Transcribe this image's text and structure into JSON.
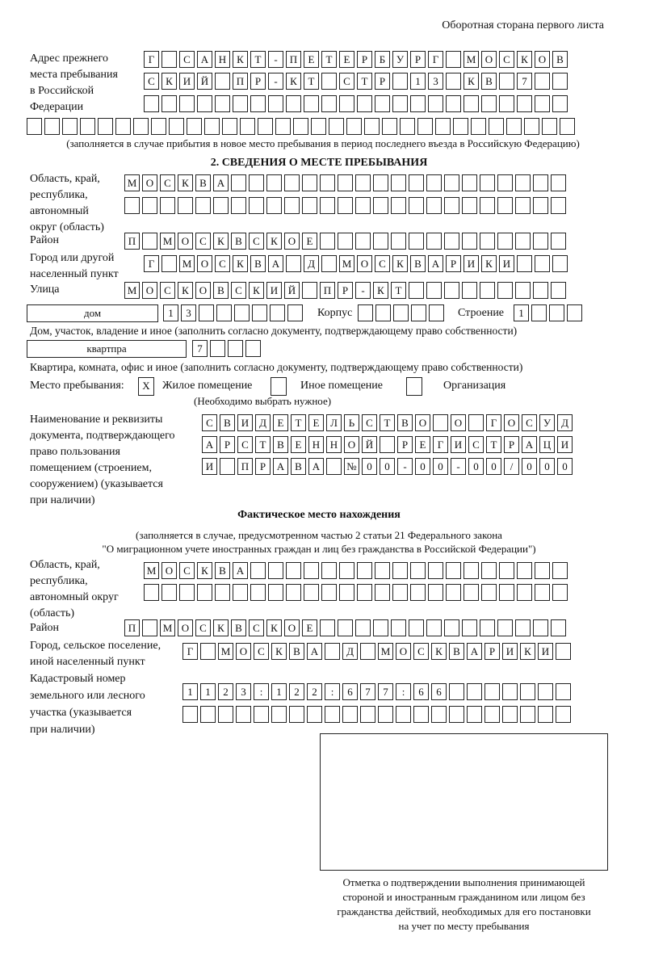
{
  "header": "Оборотная стора­на первого листа",
  "prev_address": {
    "label": [
      "Адрес прежнего",
      "места пребывания",
      "в Российской",
      "Федерации"
    ],
    "rows": [
      [
        "Г",
        "",
        "С",
        "А",
        "Н",
        "К",
        "Т",
        "-",
        "П",
        "Е",
        "Т",
        "Е",
        "Р",
        "Б",
        "У",
        "Р",
        "Г",
        "",
        "М",
        "О",
        "С",
        "К",
        "О",
        "В"
      ],
      [
        "С",
        "К",
        "И",
        "Й",
        "",
        "П",
        "Р",
        "-",
        "К",
        "Т",
        "",
        "С",
        "Т",
        "Р",
        "",
        "1",
        "3",
        "",
        "К",
        "В",
        "",
        "7",
        "",
        ""
      ],
      [
        "",
        "",
        "",
        "",
        "",
        "",
        "",
        "",
        "",
        "",
        "",
        "",
        "",
        "",
        "",
        "",
        "",
        "",
        "",
        "",
        "",
        "",
        "",
        ""
      ],
      [
        "",
        "",
        "",
        "",
        "",
        "",
        "",
        "",
        "",
        "",
        "",
        "",
        "",
        "",
        "",
        "",
        "",
        "",
        "",
        "",
        "",
        "",
        "",
        "",
        "",
        "",
        "",
        "",
        "",
        "",
        ""
      ]
    ],
    "note": "(заполняется в случае прибытия в новое место пребывания в период последнего въезда в Российскую Федерацию)"
  },
  "section2": {
    "title": "2. СВЕДЕНИЯ О МЕСТЕ ПРЕБЫВАНИЯ",
    "region_label": [
      "Область, край,",
      "республика,",
      "автономный",
      "округ (область)"
    ],
    "region_rows": [
      [
        "М",
        "О",
        "С",
        "К",
        "В",
        "А",
        "",
        "",
        "",
        "",
        "",
        "",
        "",
        "",
        "",
        "",
        "",
        "",
        "",
        "",
        "",
        "",
        "",
        "",
        ""
      ],
      [
        "",
        "",
        "",
        "",
        "",
        "",
        "",
        "",
        "",
        "",
        "",
        "",
        "",
        "",
        "",
        "",
        "",
        "",
        "",
        "",
        "",
        "",
        "",
        "",
        ""
      ]
    ],
    "district_label": "Район",
    "district": [
      "П",
      "",
      "М",
      "О",
      "С",
      "К",
      "В",
      "С",
      "К",
      "О",
      "Е",
      "",
      "",
      "",
      "",
      "",
      "",
      "",
      "",
      "",
      "",
      "",
      "",
      "",
      ""
    ],
    "city_label": [
      "Город или другой",
      "населенный пункт"
    ],
    "city": [
      "Г",
      "",
      "М",
      "О",
      "С",
      "К",
      "В",
      "А",
      "",
      "Д",
      "",
      "М",
      "О",
      "С",
      "К",
      "В",
      "А",
      "Р",
      "И",
      "К",
      "И",
      "",
      "",
      ""
    ],
    "street_label": "Улица",
    "street": [
      "М",
      "О",
      "С",
      "К",
      "О",
      "В",
      "С",
      "К",
      "И",
      "Й",
      "",
      "П",
      "Р",
      "-",
      "К",
      "Т",
      "",
      "",
      "",
      "",
      "",
      "",
      "",
      "",
      ""
    ],
    "house_type": "дом",
    "house": [
      "1",
      "3",
      "",
      "",
      "",
      "",
      "",
      ""
    ],
    "korpus_label": "Корпус",
    "korpus": [
      "",
      "",
      "",
      "",
      ""
    ],
    "building_label": "Строение",
    "building": [
      "1",
      "",
      "",
      ""
    ],
    "house_note": "Дом, участок, владение и иное (заполнить согласно документу, подтверждающему право собственности)",
    "apt_type": "квартпра",
    "apt": [
      "7",
      "",
      "",
      ""
    ],
    "apt_note": "Квартира, комната, офис и иное (заполнить согласно документу, подтверждающему право собственности)",
    "stay_label": "Место пребывания:",
    "stay_options": [
      {
        "label": "Жилое помещение",
        "mark": "X"
      },
      {
        "label": "Иное помещение",
        "mark": ""
      },
      {
        "label": "Организация",
        "mark": ""
      }
    ],
    "stay_note": "(Необходимо выбрать нужное)",
    "doc_label": [
      "Наименование и реквизиты",
      "документа, подтверждающего",
      "право пользования",
      "помещением (строением,",
      "сооружением) (указывается",
      "при наличии)"
    ],
    "doc_rows": [
      [
        "С",
        "В",
        "И",
        "Д",
        "Е",
        "Т",
        "Е",
        "Л",
        "Ь",
        "С",
        "Т",
        "В",
        "О",
        "",
        "О",
        "",
        "Г",
        "О",
        "С",
        "У",
        "Д"
      ],
      [
        "А",
        "Р",
        "С",
        "Т",
        "В",
        "Е",
        "Н",
        "Н",
        "О",
        "Й",
        "",
        "Р",
        "Е",
        "Г",
        "И",
        "С",
        "Т",
        "Р",
        "А",
        "Ц",
        "И"
      ],
      [
        "И",
        "",
        "П",
        "Р",
        "А",
        "В",
        "А",
        "",
        "№",
        "0",
        "0",
        "-",
        "0",
        "0",
        "-",
        "0",
        "0",
        "/",
        "0",
        "0",
        "0"
      ]
    ]
  },
  "actual": {
    "title": "Фактическое место нахождения",
    "note1": "(заполняется в случае, предусмотренном частью 2 статьи 21 Федерального закона",
    "note2": "\"О миграционном учете иностранных граждан и лиц без гражданства в Российской Федерации\")",
    "region_label": [
      "Область, край,",
      "республика,",
      "автономный округ",
      "(область)"
    ],
    "region_rows": [
      [
        "М",
        "О",
        "С",
        "К",
        "В",
        "А",
        "",
        "",
        "",
        "",
        "",
        "",
        "",
        "",
        "",
        "",
        "",
        "",
        "",
        "",
        "",
        "",
        "",
        ""
      ],
      [
        "",
        "",
        "",
        "",
        "",
        "",
        "",
        "",
        "",
        "",
        "",
        "",
        "",
        "",
        "",
        "",
        "",
        "",
        "",
        "",
        "",
        "",
        "",
        ""
      ]
    ],
    "district_label": "Район",
    "district": [
      "П",
      "",
      "М",
      "О",
      "С",
      "К",
      "В",
      "С",
      "К",
      "О",
      "Е",
      "",
      "",
      "",
      "",
      "",
      "",
      "",
      "",
      "",
      "",
      "",
      "",
      "",
      ""
    ],
    "city_label": [
      "Город, сельское поселение,",
      "иной населенный пункт"
    ],
    "city": [
      "Г",
      "",
      "М",
      "О",
      "С",
      "К",
      "В",
      "А",
      "",
      "Д",
      "",
      "М",
      "О",
      "С",
      "К",
      "В",
      "А",
      "Р",
      "И",
      "К",
      "И",
      ""
    ],
    "cadastre_label": [
      "Кадастровый номер",
      "земельного или лесного",
      "участка (указывается",
      "при наличии)"
    ],
    "cadastre_rows": [
      [
        "1",
        "1",
        "2",
        "3",
        ":",
        "1",
        "2",
        "2",
        ":",
        "6",
        "7",
        "7",
        ":",
        "6",
        "6",
        "",
        "",
        "",
        "",
        "",
        "",
        ""
      ],
      [
        "",
        "",
        "",
        "",
        "",
        "",
        "",
        "",
        "",
        "",
        "",
        "",
        "",
        "",
        "",
        "",
        "",
        "",
        "",
        "",
        "",
        ""
      ]
    ]
  },
  "stamp_caption": [
    "Отметка о подтверждении выполнения принимающей",
    "стороной и иностранным гражданином или лицом без",
    "гражданства действий, необходимых для его постановки",
    "на учет по месту пребывания"
  ]
}
